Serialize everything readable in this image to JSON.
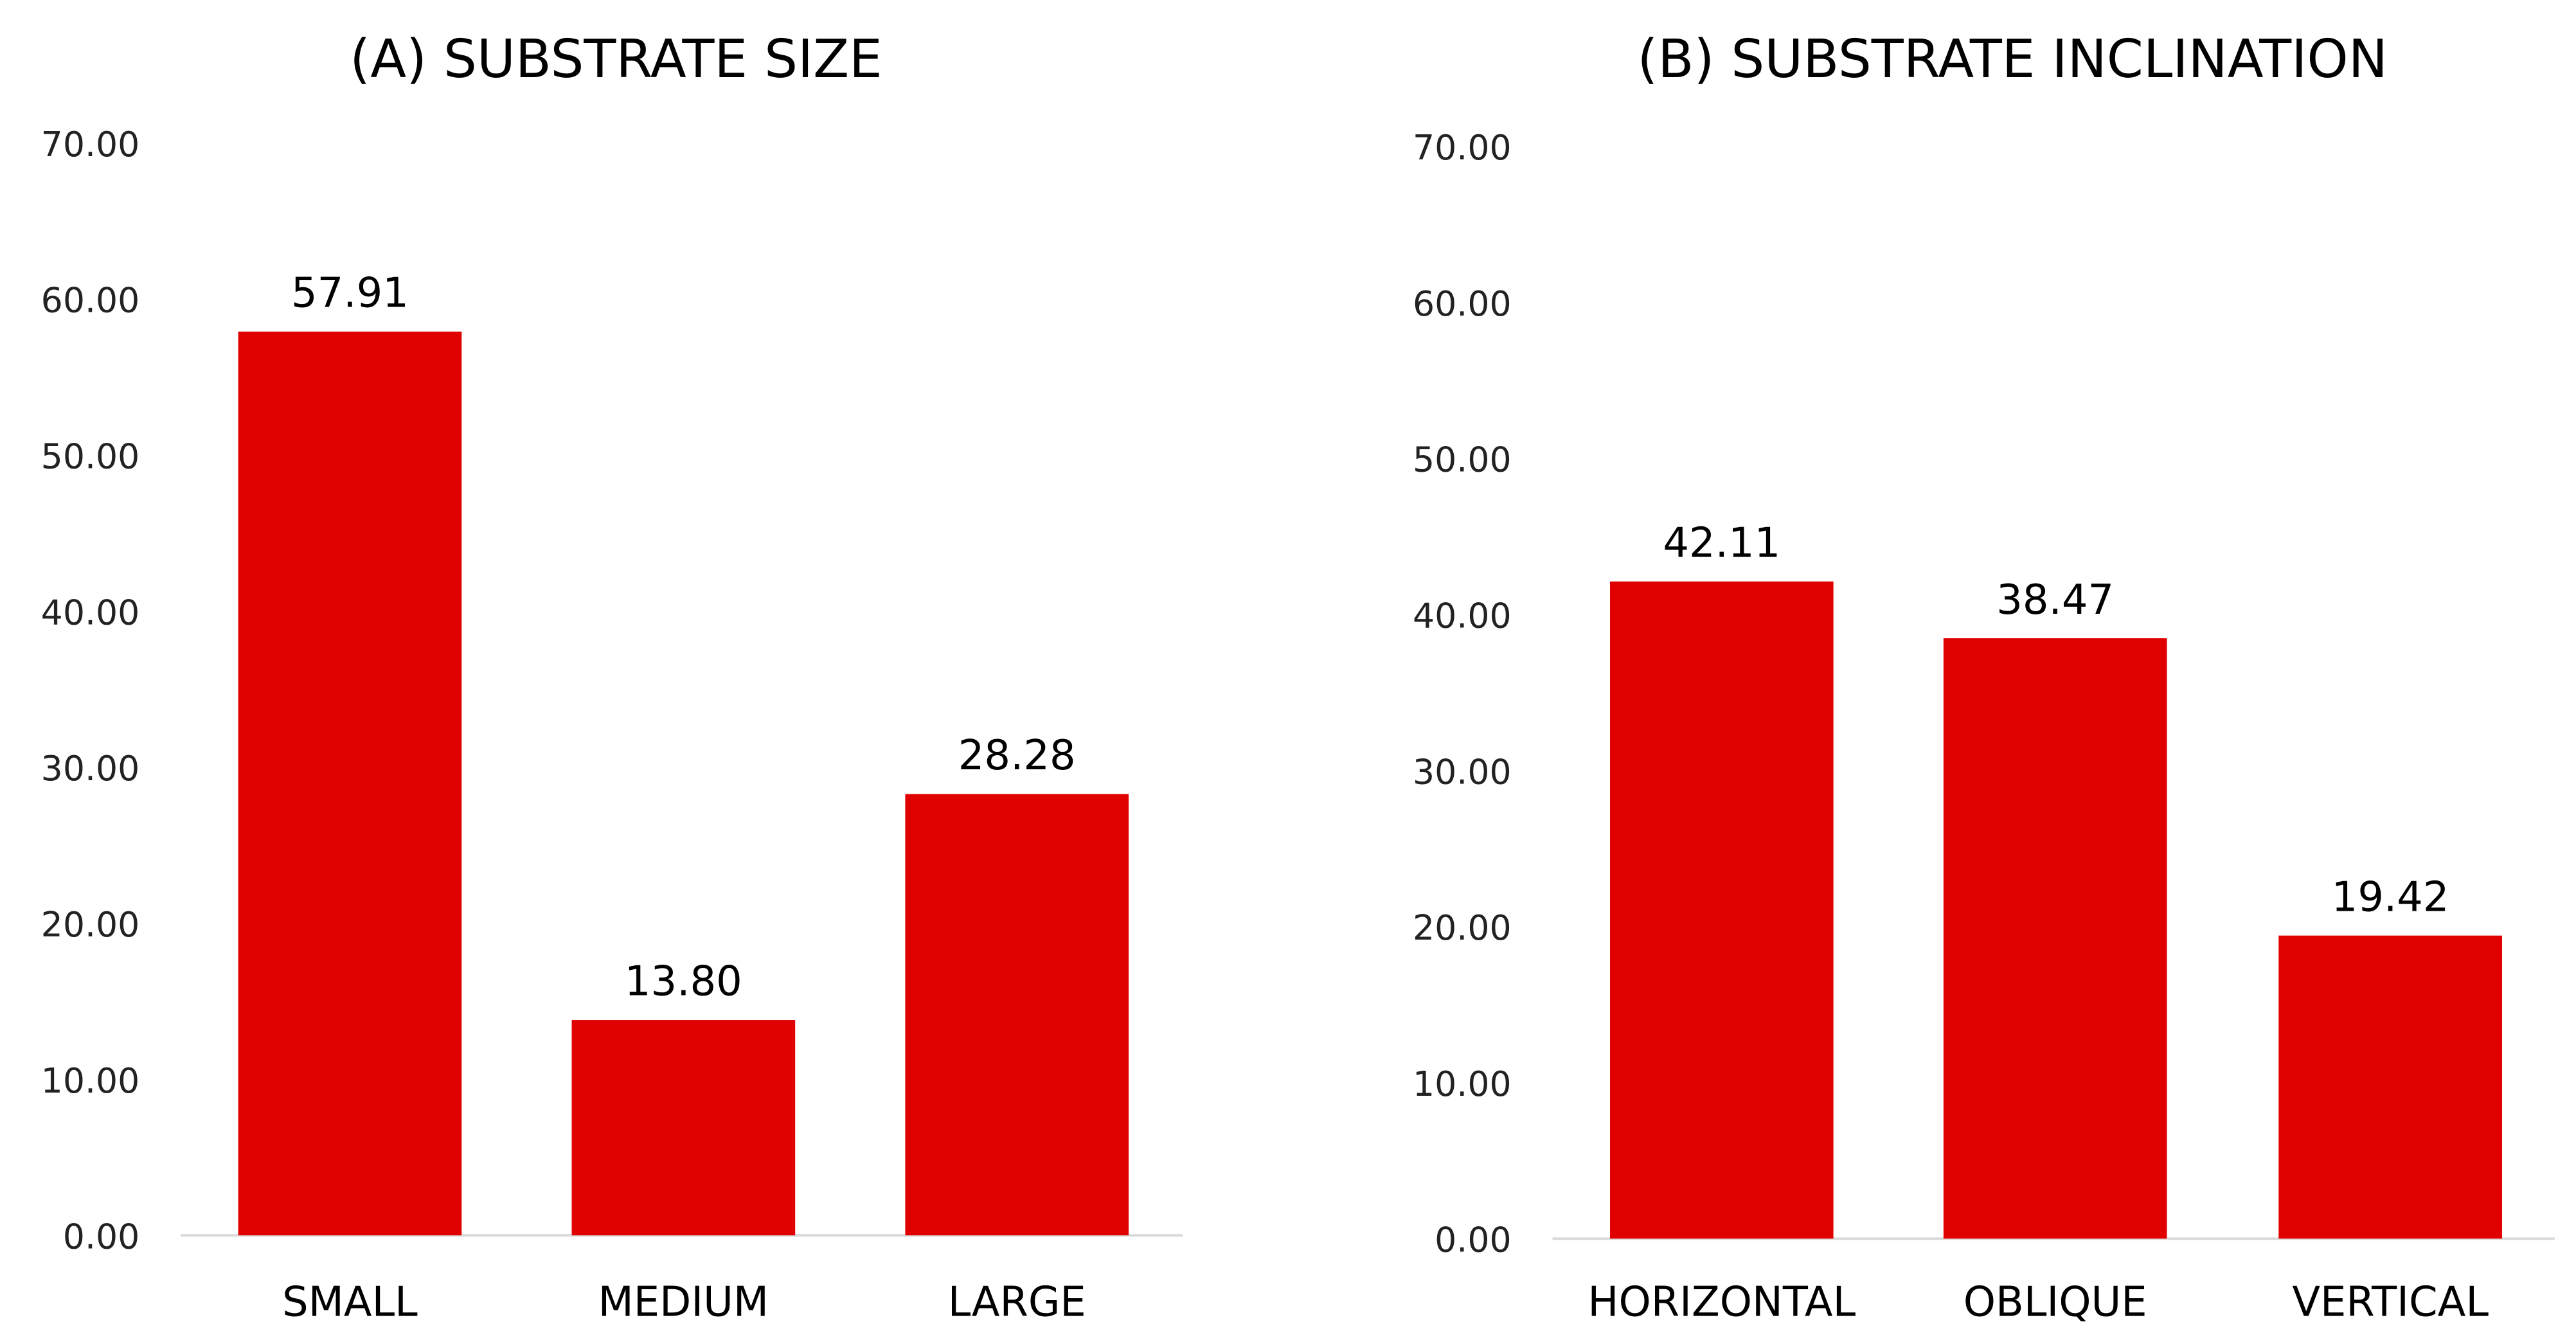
{
  "chart_data": [
    {
      "type": "bar",
      "title": "(A) SUBSTRATE SIZE",
      "categories": [
        "SMALL",
        "MEDIUM",
        "LARGE"
      ],
      "values": [
        57.91,
        13.8,
        28.28
      ],
      "data_labels": [
        "57.91",
        "13.80",
        "28.28"
      ],
      "ylim": [
        0,
        70
      ],
      "yticks": [
        "0.00",
        "10.00",
        "20.00",
        "30.00",
        "40.00",
        "50.00",
        "60.00",
        "70.00"
      ],
      "xlabel": "",
      "ylabel": "",
      "grid": false,
      "bar_color": "#e00000"
    },
    {
      "type": "bar",
      "title": "(B) SUBSTRATE INCLINATION",
      "categories": [
        "HORIZONTAL",
        "OBLIQUE",
        "VERTICAL"
      ],
      "values": [
        42.11,
        38.47,
        19.42
      ],
      "data_labels": [
        "42.11",
        "38.47",
        "19.42"
      ],
      "ylim": [
        0,
        70
      ],
      "yticks": [
        "0.00",
        "10.00",
        "20.00",
        "30.00",
        "40.00",
        "50.00",
        "60.00",
        "70.00"
      ],
      "xlabel": "",
      "ylabel": "",
      "grid": false,
      "bar_color": "#e00000"
    }
  ]
}
